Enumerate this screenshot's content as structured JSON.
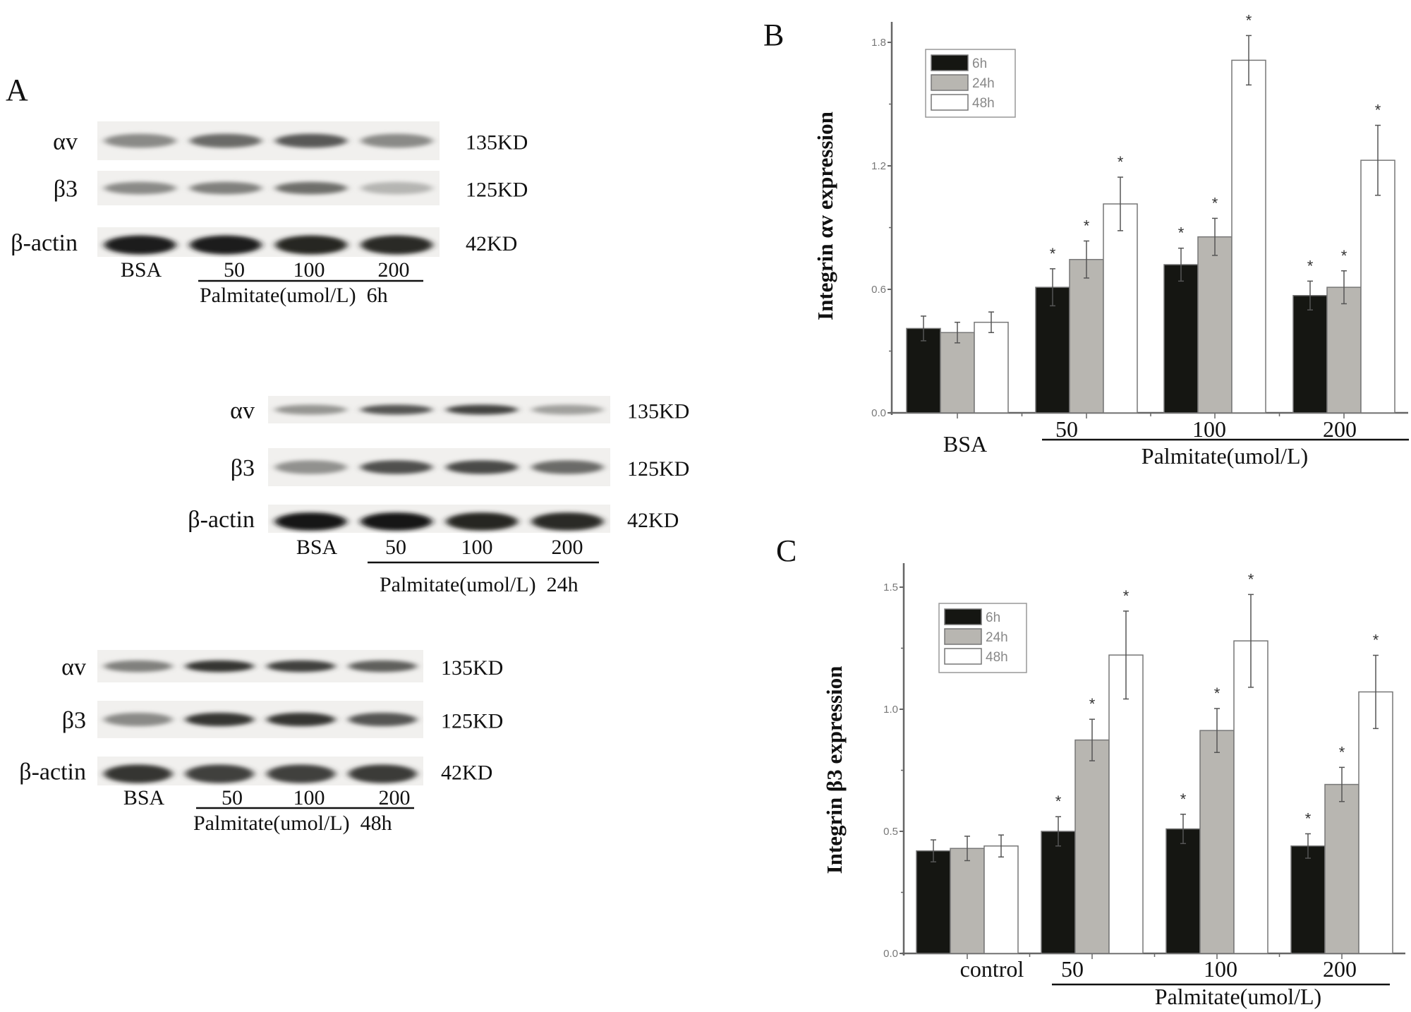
{
  "panel_labels": {
    "a": "A",
    "b": "B",
    "c": "C"
  },
  "blots": [
    {
      "rows": [
        {
          "label": "αv",
          "kd": "135KD",
          "intensity": [
            0.45,
            0.6,
            0.68,
            0.45
          ]
        },
        {
          "label": "β3",
          "kd": "125KD",
          "intensity": [
            0.45,
            0.5,
            0.58,
            0.25
          ]
        },
        {
          "label": "β-actin",
          "kd": "42KD",
          "intensity": [
            0.95,
            0.95,
            0.92,
            0.9
          ]
        }
      ],
      "lanes": [
        "BSA",
        "50",
        "100",
        "200"
      ],
      "caption": "Palmitate(umol/L)  6h"
    },
    {
      "rows": [
        {
          "label": "αv",
          "kd": "135KD",
          "intensity": [
            0.4,
            0.7,
            0.78,
            0.35
          ]
        },
        {
          "label": "β3",
          "kd": "125KD",
          "intensity": [
            0.42,
            0.72,
            0.75,
            0.6
          ]
        },
        {
          "label": "β-actin",
          "kd": "42KD",
          "intensity": [
            0.98,
            0.98,
            0.92,
            0.9
          ]
        }
      ],
      "lanes": [
        "BSA",
        "50",
        "100",
        "200"
      ],
      "caption": "Palmitate(umol/L)  24h"
    },
    {
      "rows": [
        {
          "label": "αv",
          "kd": "135KD",
          "intensity": [
            0.5,
            0.85,
            0.8,
            0.65
          ]
        },
        {
          "label": "β3",
          "kd": "125KD",
          "intensity": [
            0.45,
            0.85,
            0.85,
            0.7
          ]
        },
        {
          "label": "β-actin",
          "kd": "42KD",
          "intensity": [
            0.85,
            0.8,
            0.8,
            0.82
          ]
        }
      ],
      "lanes": [
        "BSA",
        "50",
        "100",
        "200"
      ],
      "caption": "Palmitate(umol/L)  48h"
    }
  ],
  "chart_data": [
    {
      "type": "bar",
      "panel": "B",
      "ylabel": "Integrin αv expression",
      "xlabel": "Palmitate(umol/L)",
      "categories": [
        "BSA",
        "50",
        "100",
        "200"
      ],
      "ylim": [
        0,
        1.9
      ],
      "yticks": [
        "0.0",
        "0.6",
        "1.2",
        "1.8"
      ],
      "legend_position": "top-left",
      "series": [
        {
          "name": "6h",
          "color": "#151612",
          "values": [
            0.41,
            0.61,
            0.72,
            0.57
          ],
          "errors": [
            0.06,
            0.09,
            0.08,
            0.07
          ],
          "significant": [
            false,
            true,
            true,
            true
          ]
        },
        {
          "name": "24h",
          "color": "#b8b6b1",
          "values": [
            0.39,
            0.745,
            0.855,
            0.61
          ],
          "errors": [
            0.05,
            0.09,
            0.09,
            0.08
          ],
          "significant": [
            false,
            true,
            true,
            true
          ]
        },
        {
          "name": "48h",
          "color": "#ffffff",
          "values": [
            0.44,
            1.015,
            1.713,
            1.227
          ],
          "errors": [
            0.05,
            0.13,
            0.12,
            0.17
          ],
          "significant": [
            false,
            true,
            true,
            true
          ]
        }
      ],
      "significance_mark": "*"
    },
    {
      "type": "bar",
      "panel": "C",
      "ylabel": "Integrin β3 expression",
      "xlabel": "Palmitate(umol/L)",
      "categories": [
        "control",
        "50",
        "100",
        "200"
      ],
      "ylim": [
        0,
        1.6
      ],
      "yticks": [
        "0.0",
        "0.5",
        "1.0",
        "1.5"
      ],
      "legend_position": "top-left",
      "series": [
        {
          "name": "6h",
          "color": "#151612",
          "values": [
            0.42,
            0.5,
            0.51,
            0.44
          ],
          "errors": [
            0.045,
            0.06,
            0.06,
            0.05
          ],
          "significant": [
            false,
            true,
            true,
            true
          ]
        },
        {
          "name": "24h",
          "color": "#b8b6b1",
          "values": [
            0.43,
            0.874,
            0.913,
            0.692
          ],
          "errors": [
            0.05,
            0.085,
            0.09,
            0.07
          ],
          "significant": [
            false,
            true,
            true,
            true
          ]
        },
        {
          "name": "48h",
          "color": "#ffffff",
          "values": [
            0.44,
            1.222,
            1.28,
            1.071
          ],
          "errors": [
            0.045,
            0.18,
            0.19,
            0.15
          ],
          "significant": [
            false,
            true,
            true,
            true
          ]
        }
      ],
      "significance_mark": "*"
    }
  ]
}
